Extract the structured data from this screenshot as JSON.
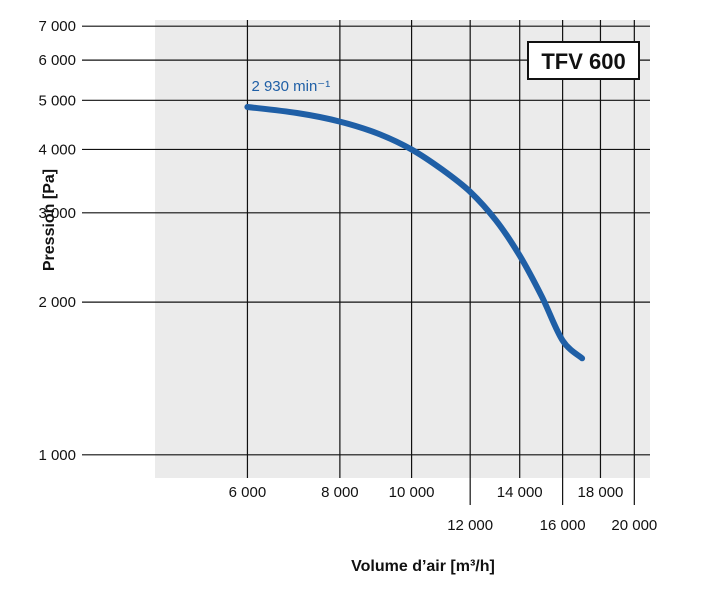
{
  "chart_data": {
    "type": "line",
    "title": "TFV 600",
    "xlabel": "Volume d’air [m³/h]",
    "ylabel": "Pression [Pa]",
    "xscale": "log",
    "yscale": "log",
    "xlim": [
      4500,
      21000
    ],
    "ylim": [
      900,
      7200
    ],
    "grid": true,
    "plot_background": "#ebebeb",
    "x_ticks": [
      {
        "value": 6000,
        "label": "6 000",
        "row": "upper"
      },
      {
        "value": 8000,
        "label": "8 000",
        "row": "upper"
      },
      {
        "value": 10000,
        "label": "10 000",
        "row": "upper"
      },
      {
        "value": 12000,
        "label": "12 000",
        "row": "lower"
      },
      {
        "value": 14000,
        "label": "14 000",
        "row": "upper"
      },
      {
        "value": 16000,
        "label": "16 000",
        "row": "lower"
      },
      {
        "value": 18000,
        "label": "18 000",
        "row": "upper"
      },
      {
        "value": 20000,
        "label": "20 000",
        "row": "lower"
      }
    ],
    "y_ticks": [
      {
        "value": 1000,
        "label": "1 000"
      },
      {
        "value": 2000,
        "label": "2 000"
      },
      {
        "value": 3000,
        "label": "3 000"
      },
      {
        "value": 4000,
        "label": "4 000"
      },
      {
        "value": 5000,
        "label": "5 000"
      },
      {
        "value": 6000,
        "label": "6 000"
      },
      {
        "value": 7000,
        "label": "7 000"
      }
    ],
    "series": [
      {
        "name": "2 930 min⁻¹",
        "color": "#1f5fa6",
        "x": [
          6000,
          7000,
          8000,
          9000,
          10000,
          11000,
          12000,
          13000,
          14000,
          15000,
          16000,
          17000
        ],
        "y": [
          4850,
          4720,
          4540,
          4300,
          4000,
          3650,
          3300,
          2900,
          2470,
          2050,
          1680,
          1550
        ]
      }
    ]
  }
}
